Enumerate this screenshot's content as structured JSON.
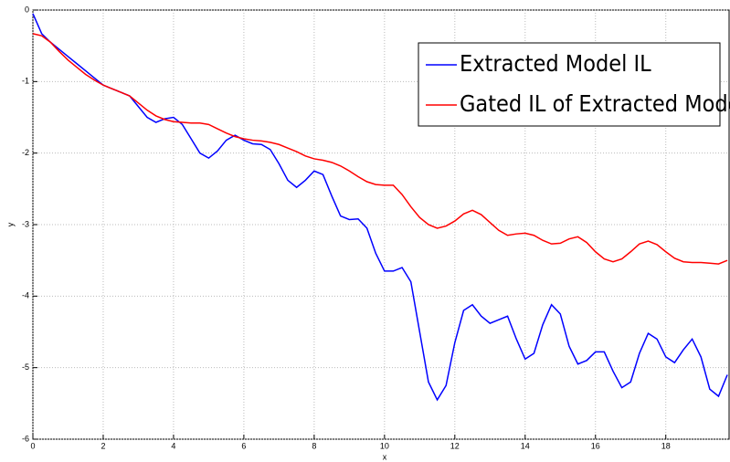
{
  "chart_data": {
    "type": "line",
    "xlabel": "x",
    "ylabel": "y",
    "x": [
      0,
      0.25,
      0.5,
      0.75,
      1,
      1.25,
      1.5,
      1.75,
      2,
      2.25,
      2.5,
      2.75,
      3,
      3.25,
      3.5,
      3.75,
      4,
      4.25,
      4.5,
      4.75,
      5,
      5.25,
      5.5,
      5.75,
      6,
      6.25,
      6.5,
      6.75,
      7,
      7.25,
      7.5,
      7.75,
      8,
      8.25,
      8.5,
      8.75,
      9,
      9.25,
      9.5,
      9.75,
      10,
      10.25,
      10.5,
      10.75,
      11,
      11.25,
      11.5,
      11.75,
      12,
      12.25,
      12.5,
      12.75,
      13,
      13.25,
      13.5,
      13.75,
      14,
      14.25,
      14.5,
      14.75,
      15,
      15.25,
      15.5,
      15.75,
      16,
      16.25,
      16.5,
      16.75,
      17,
      17.25,
      17.5,
      17.75,
      18,
      18.25,
      18.5,
      18.75,
      19,
      19.25,
      19.5,
      19.75
    ],
    "series": [
      {
        "name": "Extracted Model IL",
        "color": "#0000ff",
        "values": [
          -0.05,
          -0.33,
          -0.45,
          -0.55,
          -0.65,
          -0.75,
          -0.85,
          -0.95,
          -1.05,
          -1.1,
          -1.15,
          -1.2,
          -1.35,
          -1.5,
          -1.57,
          -1.52,
          -1.5,
          -1.6,
          -1.8,
          -2.0,
          -2.07,
          -1.97,
          -1.82,
          -1.75,
          -1.82,
          -1.87,
          -1.88,
          -1.95,
          -2.15,
          -2.38,
          -2.48,
          -2.38,
          -2.25,
          -2.3,
          -2.6,
          -2.88,
          -2.93,
          -2.92,
          -3.05,
          -3.4,
          -3.65,
          -3.65,
          -3.6,
          -3.8,
          -4.5,
          -5.2,
          -5.45,
          -5.25,
          -4.65,
          -4.2,
          -4.12,
          -4.28,
          -4.38,
          -4.33,
          -4.28,
          -4.6,
          -4.88,
          -4.8,
          -4.4,
          -4.12,
          -4.25,
          -4.7,
          -4.95,
          -4.9,
          -4.78,
          -4.78,
          -5.05,
          -5.28,
          -5.2,
          -4.8,
          -4.52,
          -4.6,
          -4.85,
          -4.93,
          -4.75,
          -4.6,
          -4.85,
          -5.3,
          -5.4,
          -5.1
        ]
      },
      {
        "name": "Gated IL of Extracted Model",
        "color": "#ff0000",
        "values": [
          -0.33,
          -0.36,
          -0.45,
          -0.58,
          -0.7,
          -0.8,
          -0.9,
          -0.98,
          -1.05,
          -1.1,
          -1.15,
          -1.2,
          -1.3,
          -1.4,
          -1.48,
          -1.53,
          -1.56,
          -1.57,
          -1.58,
          -1.58,
          -1.6,
          -1.66,
          -1.72,
          -1.77,
          -1.8,
          -1.82,
          -1.83,
          -1.85,
          -1.88,
          -1.93,
          -1.98,
          -2.04,
          -2.08,
          -2.1,
          -2.13,
          -2.18,
          -2.25,
          -2.33,
          -2.4,
          -2.44,
          -2.45,
          -2.45,
          -2.58,
          -2.75,
          -2.9,
          -3.0,
          -3.05,
          -3.02,
          -2.95,
          -2.85,
          -2.8,
          -2.86,
          -2.97,
          -3.08,
          -3.15,
          -3.13,
          -3.12,
          -3.15,
          -3.22,
          -3.27,
          -3.26,
          -3.2,
          -3.17,
          -3.25,
          -3.38,
          -3.48,
          -3.52,
          -3.48,
          -3.38,
          -3.27,
          -3.23,
          -3.28,
          -3.38,
          -3.47,
          -3.52,
          -3.53,
          -3.53,
          -3.54,
          -3.55,
          -3.5
        ]
      }
    ],
    "xlim": [
      0,
      19.8
    ],
    "ylim": [
      -6,
      0
    ],
    "xticks": [
      0,
      2,
      4,
      6,
      8,
      10,
      12,
      14,
      16,
      18
    ],
    "yticks": [
      0,
      -1,
      -2,
      -3,
      -4,
      -5,
      -6
    ],
    "grid": true,
    "legend": "northeast"
  }
}
